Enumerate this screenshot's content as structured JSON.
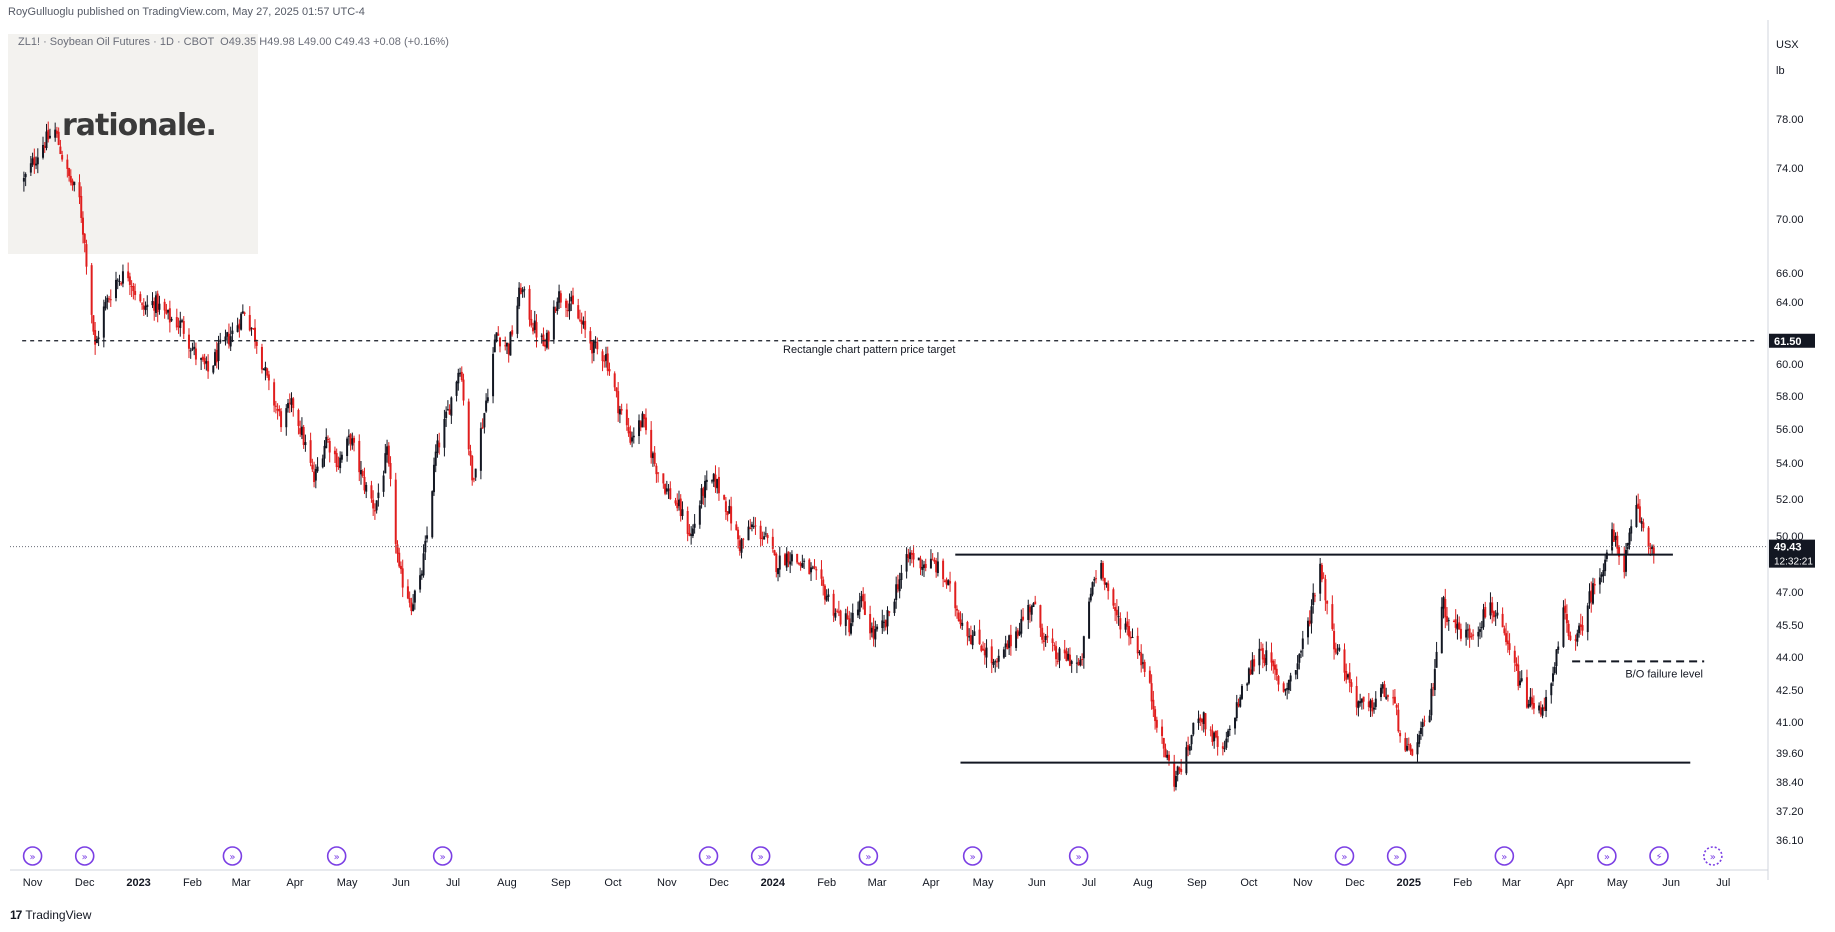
{
  "header": {
    "publisher": "RoyGulluoglu published on TradingView.com",
    "date": "May 27, 2025 01:57 UTC-4"
  },
  "symbol_line": {
    "symbol": "ZL1! · Soybean Oil Futures · 1D · CBOT",
    "ohlc": "O49.35  H49.98  L49.00  C49.43  +0.08 (+0.16%)"
  },
  "brand": "rationale.",
  "footer": {
    "name": "TradingView"
  },
  "chart_data": {
    "type": "line",
    "title": "ZL1! · Soybean Oil Futures · 1D · CBOT",
    "units": [
      "USX",
      "lb"
    ],
    "y_ticks": [
      36.1,
      37.2,
      38.4,
      39.6,
      41.0,
      42.5,
      44.0,
      45.5,
      47.0,
      50.0,
      52.0,
      54.0,
      56.0,
      58.0,
      60.0,
      64.0,
      66.0,
      70.0,
      74.0,
      78.0
    ],
    "y_tick_labels": [
      "36.10",
      "37.20",
      "38.40",
      "39.60",
      "41.00",
      "42.50",
      "44.00",
      "45.50",
      "47.00",
      "50.00",
      "52.00",
      "54.00",
      "56.00",
      "58.00",
      "60.00",
      "64.00",
      "66.00",
      "70.00",
      "74.00",
      "78.00"
    ],
    "x_ticks": [
      "Nov",
      "Dec",
      "2023",
      "Feb",
      "Mar",
      "Apr",
      "May",
      "Jun",
      "Jul",
      "Aug",
      "Sep",
      "Oct",
      "Nov",
      "Dec",
      "2024",
      "Feb",
      "Mar",
      "Apr",
      "May",
      "Jun",
      "Jul",
      "Aug",
      "Sep",
      "Oct",
      "Nov",
      "Dec",
      "2025",
      "Feb",
      "Mar",
      "Apr",
      "May",
      "Jun",
      "Jul"
    ],
    "x_tick_dates": [
      "2022-11-01",
      "2022-12-01",
      "2023-01-01",
      "2023-02-01",
      "2023-03-01",
      "2023-04-01",
      "2023-05-01",
      "2023-06-01",
      "2023-07-01",
      "2023-08-01",
      "2023-09-01",
      "2023-10-01",
      "2023-11-01",
      "2023-12-01",
      "2024-01-01",
      "2024-02-01",
      "2024-03-01",
      "2024-04-01",
      "2024-05-01",
      "2024-06-01",
      "2024-07-01",
      "2024-08-01",
      "2024-09-01",
      "2024-10-01",
      "2024-11-01",
      "2024-12-01",
      "2025-01-01",
      "2025-02-01",
      "2025-03-01",
      "2025-04-01",
      "2025-05-01",
      "2025-06-01",
      "2025-07-01"
    ],
    "series": [
      {
        "values": [
          [
            "2022-10-27",
            73.0
          ],
          [
            "2022-11-07",
            76.0
          ],
          [
            "2022-11-14",
            77.0
          ],
          [
            "2022-11-21",
            73.5
          ],
          [
            "2022-11-28",
            71.5
          ],
          [
            "2022-12-02",
            67.0
          ],
          [
            "2022-12-07",
            61.0
          ],
          [
            "2022-12-12",
            63.5
          ],
          [
            "2022-12-19",
            65.5
          ],
          [
            "2022-12-26",
            66.0
          ],
          [
            "2023-01-03",
            63.5
          ],
          [
            "2023-01-10",
            64.0
          ],
          [
            "2023-01-18",
            63.0
          ],
          [
            "2023-01-26",
            62.5
          ],
          [
            "2023-02-03",
            60.5
          ],
          [
            "2023-02-10",
            59.5
          ],
          [
            "2023-02-17",
            61.0
          ],
          [
            "2023-02-24",
            62.0
          ],
          [
            "2023-03-03",
            63.5
          ],
          [
            "2023-03-10",
            61.5
          ],
          [
            "2023-03-17",
            58.5
          ],
          [
            "2023-03-24",
            56.5
          ],
          [
            "2023-03-31",
            57.5
          ],
          [
            "2023-04-07",
            55.0
          ],
          [
            "2023-04-12",
            53.0
          ],
          [
            "2023-04-19",
            55.5
          ],
          [
            "2023-04-26",
            54.0
          ],
          [
            "2023-05-03",
            55.5
          ],
          [
            "2023-05-10",
            53.0
          ],
          [
            "2023-05-17",
            51.5
          ],
          [
            "2023-05-24",
            54.5
          ],
          [
            "2023-05-31",
            48.0
          ],
          [
            "2023-06-07",
            46.5
          ],
          [
            "2023-06-12",
            47.5
          ],
          [
            "2023-06-16",
            50.0
          ],
          [
            "2023-06-21",
            54.5
          ],
          [
            "2023-06-28",
            57.0
          ],
          [
            "2023-07-05",
            60.0
          ],
          [
            "2023-07-12",
            53.0
          ],
          [
            "2023-07-19",
            57.0
          ],
          [
            "2023-07-26",
            62.0
          ],
          [
            "2023-08-02",
            61.0
          ],
          [
            "2023-08-09",
            65.0
          ],
          [
            "2023-08-16",
            62.5
          ],
          [
            "2023-08-23",
            61.0
          ],
          [
            "2023-08-30",
            64.5
          ],
          [
            "2023-09-06",
            64.0
          ],
          [
            "2023-09-13",
            62.5
          ],
          [
            "2023-09-20",
            61.0
          ],
          [
            "2023-09-27",
            60.5
          ],
          [
            "2023-10-04",
            57.5
          ],
          [
            "2023-10-11",
            55.5
          ],
          [
            "2023-10-18",
            56.5
          ],
          [
            "2023-10-25",
            54.0
          ],
          [
            "2023-11-01",
            52.5
          ],
          [
            "2023-11-08",
            51.5
          ],
          [
            "2023-11-15",
            50.0
          ],
          [
            "2023-11-22",
            52.5
          ],
          [
            "2023-11-29",
            53.0
          ],
          [
            "2023-12-06",
            51.5
          ],
          [
            "2023-12-13",
            49.5
          ],
          [
            "2023-12-20",
            50.5
          ],
          [
            "2023-12-27",
            50.0
          ],
          [
            "2024-01-03",
            48.5
          ],
          [
            "2024-01-10",
            49.0
          ],
          [
            "2024-01-17",
            48.5
          ],
          [
            "2024-01-24",
            48.0
          ],
          [
            "2024-01-31",
            47.0
          ],
          [
            "2024-02-07",
            46.0
          ],
          [
            "2024-02-14",
            45.5
          ],
          [
            "2024-02-21",
            46.5
          ],
          [
            "2024-02-28",
            45.0
          ],
          [
            "2024-03-06",
            45.5
          ],
          [
            "2024-03-13",
            47.5
          ],
          [
            "2024-03-20",
            49.0
          ],
          [
            "2024-03-27",
            48.5
          ],
          [
            "2024-04-03",
            48.5
          ],
          [
            "2024-04-10",
            47.5
          ],
          [
            "2024-04-17",
            46.0
          ],
          [
            "2024-04-24",
            45.0
          ],
          [
            "2024-05-01",
            44.5
          ],
          [
            "2024-05-08",
            43.5
          ],
          [
            "2024-05-15",
            44.5
          ],
          [
            "2024-05-22",
            45.5
          ],
          [
            "2024-05-29",
            46.5
          ],
          [
            "2024-06-05",
            45.0
          ],
          [
            "2024-06-12",
            44.0
          ],
          [
            "2024-06-19",
            44.0
          ],
          [
            "2024-06-26",
            43.5
          ],
          [
            "2024-07-03",
            47.5
          ],
          [
            "2024-07-08",
            48.5
          ],
          [
            "2024-07-15",
            46.0
          ],
          [
            "2024-07-22",
            45.5
          ],
          [
            "2024-07-29",
            44.5
          ],
          [
            "2024-08-05",
            42.5
          ],
          [
            "2024-08-12",
            40.0
          ],
          [
            "2024-08-19",
            38.5
          ],
          [
            "2024-08-26",
            39.5
          ],
          [
            "2024-09-02",
            41.5
          ],
          [
            "2024-09-09",
            40.5
          ],
          [
            "2024-09-16",
            39.5
          ],
          [
            "2024-09-23",
            41.5
          ],
          [
            "2024-09-30",
            43.0
          ],
          [
            "2024-10-07",
            44.5
          ],
          [
            "2024-10-14",
            43.5
          ],
          [
            "2024-10-21",
            42.5
          ],
          [
            "2024-10-28",
            43.5
          ],
          [
            "2024-11-04",
            45.5
          ],
          [
            "2024-11-11",
            48.5
          ],
          [
            "2024-11-18",
            45.0
          ],
          [
            "2024-11-25",
            43.5
          ],
          [
            "2024-12-02",
            42.0
          ],
          [
            "2024-12-09",
            41.5
          ],
          [
            "2024-12-16",
            42.5
          ],
          [
            "2024-12-23",
            42.0
          ],
          [
            "2024-12-30",
            39.5
          ],
          [
            "2025-01-06",
            40.0
          ],
          [
            "2025-01-13",
            41.5
          ],
          [
            "2025-01-20",
            46.5
          ],
          [
            "2025-01-27",
            45.5
          ],
          [
            "2025-02-03",
            45.0
          ],
          [
            "2025-02-10",
            45.5
          ],
          [
            "2025-02-17",
            46.5
          ],
          [
            "2025-02-24",
            45.0
          ],
          [
            "2025-03-03",
            43.5
          ],
          [
            "2025-03-10",
            42.0
          ],
          [
            "2025-03-17",
            41.5
          ],
          [
            "2025-03-24",
            42.5
          ],
          [
            "2025-03-31",
            46.0
          ],
          [
            "2025-04-07",
            44.5
          ],
          [
            "2025-04-14",
            46.5
          ],
          [
            "2025-04-21",
            48.0
          ],
          [
            "2025-04-28",
            50.0
          ],
          [
            "2025-05-05",
            48.5
          ],
          [
            "2025-05-12",
            51.5
          ],
          [
            "2025-05-19",
            49.5
          ],
          [
            "2025-05-23",
            49.43
          ]
        ]
      }
    ],
    "annotations": [
      {
        "type": "hline",
        "value": 61.5,
        "style": "dashed",
        "label": "Rectangle chart pattern price target",
        "from": "2022-10-26",
        "to": "2025-07-20"
      },
      {
        "type": "hline",
        "value": 49.0,
        "style": "solid",
        "label": "",
        "from": "2024-04-15",
        "to": "2025-06-02"
      },
      {
        "type": "hline",
        "value": 39.2,
        "style": "solid",
        "label": "",
        "from": "2024-04-18",
        "to": "2025-06-12"
      },
      {
        "type": "hline",
        "value": 43.8,
        "style": "dashed",
        "label": "B/O failure level",
        "from": "2025-04-05",
        "to": "2025-06-20"
      }
    ],
    "price_badges": [
      {
        "value": 61.5,
        "label": "61.50"
      },
      {
        "value": 49.43,
        "label": "49.43",
        "sub": "12:32:21"
      }
    ],
    "event_markers": [
      "2022-11-01",
      "2022-12-01",
      "2023-02-24",
      "2023-04-25",
      "2023-06-25",
      "2023-11-25",
      "2023-12-25",
      "2024-02-25",
      "2024-04-25",
      "2024-06-25",
      "2024-11-25",
      "2024-12-25",
      "2025-02-25",
      "2025-04-25",
      "2025-05-25",
      "2025-06-25"
    ],
    "colors": {
      "up": "#131722",
      "down": "#e01e1e",
      "grid": "#e6e8ee",
      "text": "#131722",
      "axis": "#6a6d78",
      "marker": "#7b3fe4",
      "dotted": "#6a6d78"
    }
  }
}
